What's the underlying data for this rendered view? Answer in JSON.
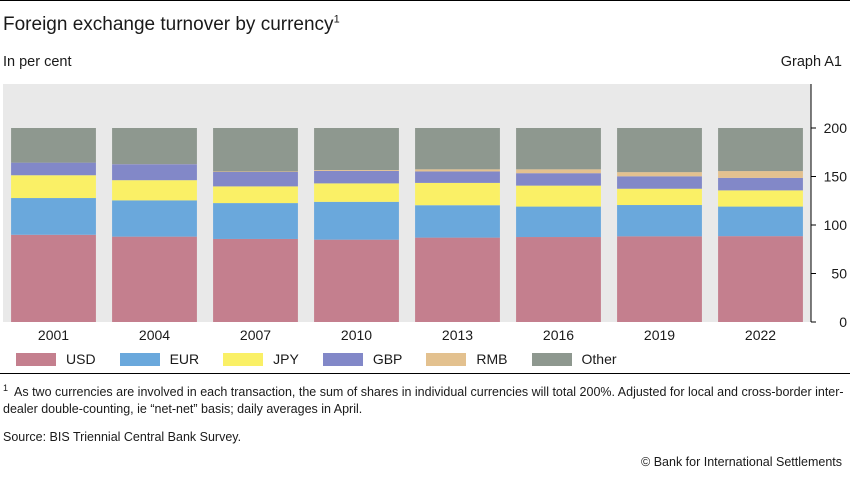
{
  "header": {
    "title": "Foreign exchange turnover by currency",
    "title_marker": "1",
    "subtitle": "In per cent",
    "graph_id": "Graph A1"
  },
  "chart_data": {
    "type": "bar",
    "stacked": true,
    "categories": [
      "2001",
      "2004",
      "2007",
      "2010",
      "2013",
      "2016",
      "2019",
      "2022"
    ],
    "ylim": [
      0,
      200
    ],
    "yticks": [
      0,
      50,
      100,
      150,
      200
    ],
    "y_axis_position": "right",
    "grid": false,
    "legend_position": "bottom-left",
    "series": [
      {
        "name": "USD",
        "color": "#c47f8e",
        "values": [
          89.9,
          88.0,
          85.6,
          84.9,
          87.0,
          87.6,
          88.3,
          88.5
        ]
      },
      {
        "name": "EUR",
        "color": "#6aa8dc",
        "values": [
          37.9,
          37.4,
          37.0,
          39.0,
          33.4,
          31.4,
          32.3,
          30.5
        ]
      },
      {
        "name": "JPY",
        "color": "#faf066",
        "values": [
          23.5,
          20.8,
          17.2,
          19.0,
          23.0,
          21.6,
          16.8,
          16.7
        ]
      },
      {
        "name": "GBP",
        "color": "#8288c8",
        "values": [
          13.0,
          16.5,
          14.9,
          12.9,
          11.8,
          12.8,
          12.8,
          12.9
        ]
      },
      {
        "name": "RMB",
        "color": "#e3c18f",
        "values": [
          0.0,
          0.1,
          0.5,
          0.9,
          2.2,
          4.0,
          4.3,
          7.0
        ]
      },
      {
        "name": "Other",
        "color": "#8e988f",
        "values": [
          35.7,
          37.2,
          44.8,
          43.3,
          42.6,
          42.6,
          45.5,
          44.4
        ]
      }
    ]
  },
  "footnote": {
    "marker": "1",
    "text": "As two currencies are involved in each transaction, the sum of shares in individual currencies will total 200%. Adjusted for local and cross-border inter-dealer double-counting, ie “net-net” basis; daily averages in April."
  },
  "source": "Source: BIS Triennial Central Bank Survey.",
  "copyright": "© Bank for International Settlements"
}
